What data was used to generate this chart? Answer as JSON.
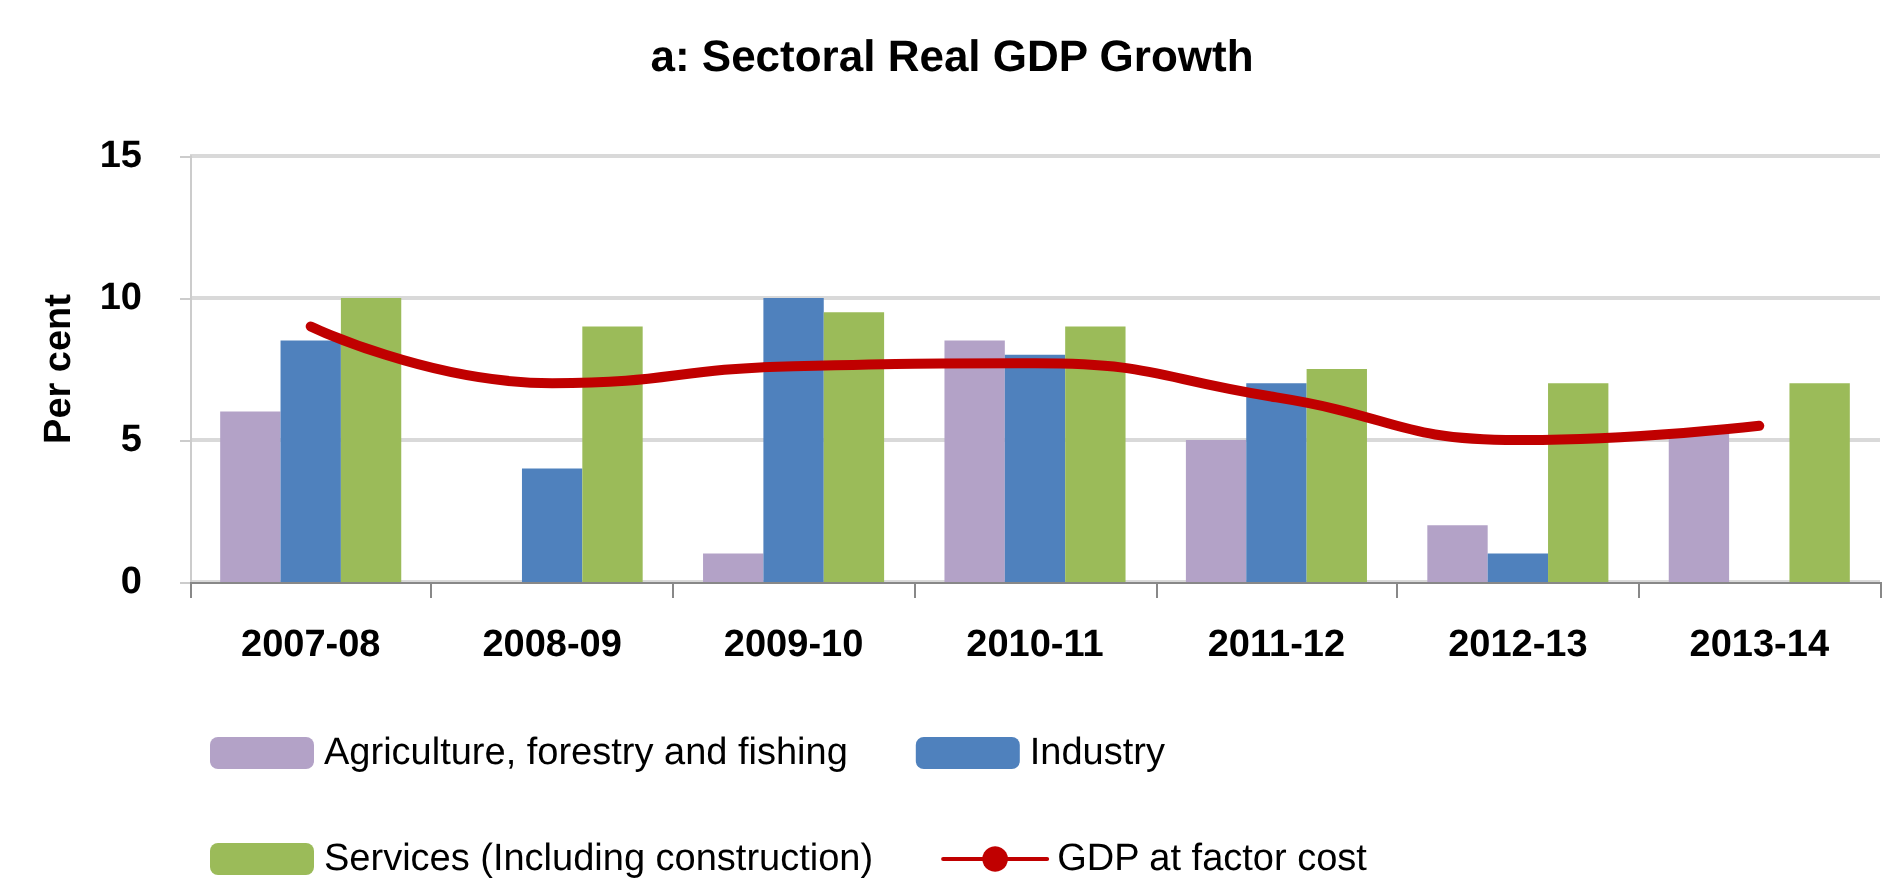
{
  "chart_data": {
    "type": "bar",
    "title": "a: Sectoral Real GDP Growth",
    "ylabel": "Per cent",
    "categories": [
      "2007-08",
      "2008-09",
      "2009-10",
      "2010-11",
      "2011-12",
      "2012-13",
      "2013-14"
    ],
    "series": [
      {
        "name": "Agriculture, forestry and fishing",
        "color": "#b3a2c7",
        "values": [
          6,
          0,
          1,
          8.5,
          5,
          2,
          5.3
        ]
      },
      {
        "name": "Industry",
        "color": "#4f81bd",
        "values": [
          8.5,
          4,
          10,
          8,
          7,
          1,
          0
        ]
      },
      {
        "name": "Services (Including construction)",
        "color": "#9bbb59",
        "values": [
          10,
          9,
          9.5,
          9,
          7.5,
          7,
          7
        ]
      },
      {
        "name": "GDP at factor cost",
        "color": "#c00000",
        "type": "line",
        "values": [
          9,
          7,
          7.6,
          7.7,
          6.5,
          5,
          5.5
        ]
      }
    ],
    "ylim": [
      0,
      15
    ],
    "yticks": [
      0,
      5,
      10,
      15
    ],
    "grid": "y",
    "legend": "bottom"
  }
}
